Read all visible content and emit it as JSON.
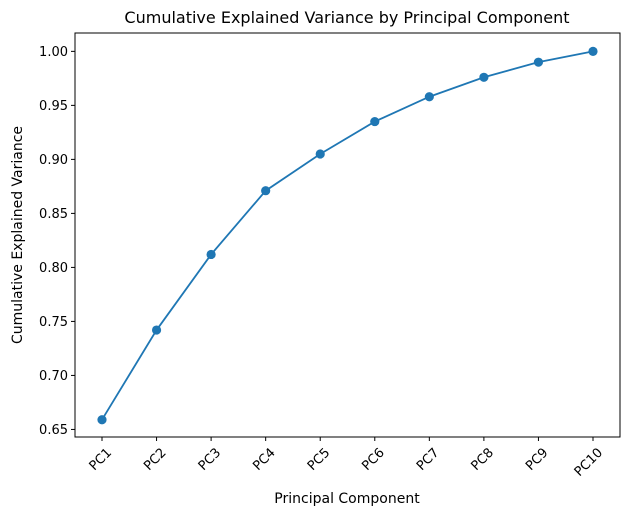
{
  "chart_data": {
    "type": "line",
    "title": "Cumulative Explained Variance by Principal Component",
    "xlabel": "Principal Component",
    "ylabel": "Cumulative Explained Variance",
    "categories": [
      "PC1",
      "PC2",
      "PC3",
      "PC4",
      "PC5",
      "PC6",
      "PC7",
      "PC8",
      "PC9",
      "PC10"
    ],
    "values": [
      0.659,
      0.742,
      0.812,
      0.871,
      0.905,
      0.935,
      0.958,
      0.976,
      0.99,
      1.0
    ],
    "yticks": [
      "0.65",
      "0.70",
      "0.75",
      "0.80",
      "0.85",
      "0.90",
      "0.95",
      "1.00"
    ],
    "ylim": [
      0.643,
      1.017
    ],
    "grid": false,
    "legend": false,
    "line_color": "#1f77b4",
    "marker": "circle"
  }
}
